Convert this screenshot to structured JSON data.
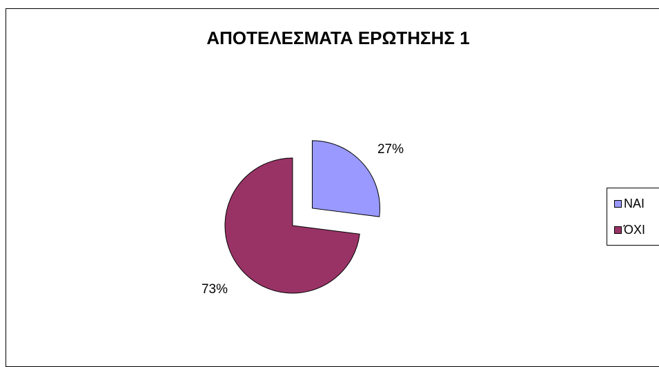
{
  "chart_data": {
    "type": "pie",
    "title": "ΑΠΟΤΕΛΕΣΜΑΤΑ ΕΡΩΤΗΣΗΣ 1",
    "categories": [
      "ΝΑΙ",
      "ΌΧΙ"
    ],
    "values": [
      27,
      73
    ],
    "data_labels": [
      "27%",
      "73%"
    ],
    "colors": [
      "#9999FF",
      "#993366"
    ],
    "exploded": true,
    "legend": "right"
  }
}
